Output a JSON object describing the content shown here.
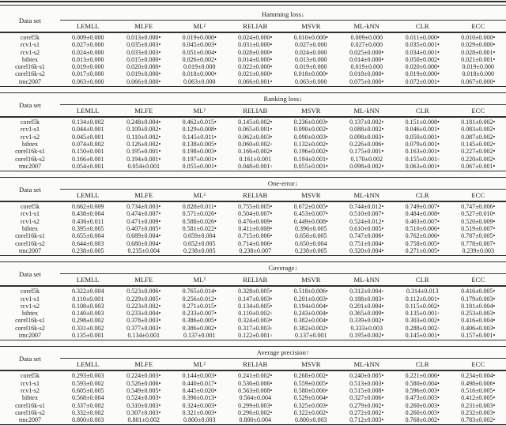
{
  "tables": [
    {
      "metric": "Hamming loss↓",
      "row_header": "Data set",
      "methods": [
        "LEMLL",
        "MLFE",
        "ML²",
        "RELIAB",
        "MSVR",
        "ML-kNN",
        "CLR",
        "ECC"
      ],
      "rows": [
        {
          "dataset": "corel5k",
          "values": [
            "0.009±0.000",
            "0.013±0.000•",
            "0.019±0.000•",
            "0.024±0.000•",
            "0.010±0.000•",
            "0.009±0.000",
            "0.011±0.000•",
            "0.010±0.000•"
          ]
        },
        {
          "dataset": "rcv1-s1",
          "values": [
            "0.027±0.000",
            "0.035±0.003•",
            "0.045±0.003•",
            "0.031±0.000•",
            "0.027±0.000",
            "0.027±0.000",
            "0.035±0.001•",
            "0.029±0.000•"
          ]
        },
        {
          "dataset": "rcv1-s2",
          "values": [
            "0.024±0.000",
            "0.033±0.003•",
            "0.051±0.004•",
            "0.028±0.000•",
            "0.024±0.000",
            "0.025±0.000•",
            "0.034±0.001•",
            "0.028±0.001•"
          ]
        },
        {
          "dataset": "bibtex",
          "values": [
            "0.013±0.000",
            "0.015±0.000•",
            "0.026±0.002•",
            "0.014±0.000•",
            "0.013±0.000",
            "0.014±0.000•",
            "0.050±0.002•",
            "0.021±0.001•"
          ]
        },
        {
          "dataset": "corel16k-s1",
          "values": [
            "0.019±0.000",
            "0.020±0.000•",
            "0.019±0.000",
            "0.022±0.000•",
            "0.019±0.000",
            "0.019±0.000",
            "0.020±0.000•",
            "0.019±0.000"
          ]
        },
        {
          "dataset": "corel16k-s2",
          "values": [
            "0.017±0.000",
            "0.019±0.000•",
            "0.018±0.000•",
            "0.021±0.000•",
            "0.018±0.000•",
            "0.018±0.000•",
            "0.019±0.000•",
            "0.018±0.000"
          ]
        },
        {
          "dataset": "tmc2007",
          "values": [
            "0.063±0.000",
            "0.066±0.000•",
            "0.063±0.000",
            "0.066±0.001•",
            "0.063±0.000",
            "0.075±0.000•",
            "0.072±0.001•",
            "0.067±0.000•"
          ]
        }
      ]
    },
    {
      "metric": "Ranking loss↓",
      "row_header": "Data set",
      "methods": [
        "LEMLL",
        "MLFE",
        "ML²",
        "RELIAB",
        "MSVR",
        "ML-kNN",
        "CLR",
        "ECC"
      ],
      "rows": [
        {
          "dataset": "corel5k",
          "values": [
            "0.134±0.002",
            "0.248±0.004•",
            "0.462±0.015•",
            "0.145±0.002•",
            "0.236±0.003•",
            "0.137±0.002•",
            "0.151±0.008•",
            "0.181±0.002•"
          ]
        },
        {
          "dataset": "rcv1-s1",
          "values": [
            "0.044±0.001",
            "0.109±0.002•",
            "0.129±0.008•",
            "0.065±0.001•",
            "0.090±0.002•",
            "0.088±0.002•",
            "0.046±0.001•",
            "0.083±0.002•"
          ]
        },
        {
          "dataset": "rcv1-s2",
          "values": [
            "0.045±0.001",
            "0.110±0.002•",
            "0.145±0.011•",
            "0.062±0.003•",
            "0.090±0.003•",
            "0.098±0.003•",
            "0.050±0.001•",
            "0.087±0.002•"
          ]
        },
        {
          "dataset": "bibtex",
          "values": [
            "0.074±0.002",
            "0.126±0.002•",
            "0.138±0.005•",
            "0.060±0.002◦",
            "0.132±0.002•",
            "0.226±0.006•",
            "0.079±0.001•",
            "0.145±0.002•"
          ]
        },
        {
          "dataset": "corel16k-s1",
          "values": [
            "0.150±0.001",
            "0.195±0.001•",
            "0.198±0.003•",
            "0.166±0.002•",
            "0.196±0.002•",
            "0.175±0.001•",
            "0.163±0.001•",
            "0.227±0.002•"
          ]
        },
        {
          "dataset": "corel16k-s2",
          "values": [
            "0.166±0.001",
            "0.194±0.001•",
            "0.197±0.001•",
            "0.161±0.001",
            "0.194±0.001•",
            "0.170±0.002",
            "0.155±0.001◦",
            "0.220±0.002•"
          ]
        },
        {
          "dataset": "tmc2007",
          "values": [
            "0.054±0.001",
            "0.054±0.001",
            "0.055±0.001•",
            "0.048±0.001◦",
            "0.055±0.001•",
            "0.098±0.002•",
            "0.063±0.001•",
            "0.067±0.001•"
          ]
        }
      ]
    },
    {
      "metric": "One-error↓",
      "row_header": "Data set",
      "methods": [
        "LEMLL",
        "MLFE",
        "ML²",
        "RELIAB",
        "MSVR",
        "ML-kNN",
        "CLR",
        "ECC"
      ],
      "rows": [
        {
          "dataset": "corel5k",
          "values": [
            "0.662±0.009",
            "0.734±0.003•",
            "0.828±0.011•",
            "0.755±0.005•",
            "0.672±0.005•",
            "0.744±0.012•",
            "0.749±0.007•",
            "0.747±0.006•"
          ]
        },
        {
          "dataset": "rcv1-s1",
          "values": [
            "0.438±0.004",
            "0.474±0.007•",
            "0.571±0.026•",
            "0.504±0.007•",
            "0.453±0.007•",
            "0.510±0.007•",
            "0.484±0.008•",
            "0.527±0.010•"
          ]
        },
        {
          "dataset": "rcv1-s2",
          "values": [
            "0.436±0.011",
            "0.471±0.009•",
            "0.588±0.026•",
            "0.476±0.009•",
            "0.449±0.008•",
            "0.524±0.012•",
            "0.463±0.007•",
            "0.520±0.009•"
          ]
        },
        {
          "dataset": "bibtex",
          "values": [
            "0.395±0.005",
            "0.407±0.005•",
            "0.581±0.022•",
            "0.411±0.008•",
            "0.396±0.005",
            "0.610±0.005•",
            "0.510±0.006•",
            "0.519±0.007•"
          ]
        },
        {
          "dataset": "corel16k-s1",
          "values": [
            "0.655±0.004",
            "0.689±0.004•",
            "0.659±0.004",
            "0.715±0.006•",
            "0.656±0.005",
            "0.747±0.006•",
            "0.762±0.006•",
            "0.787±0.005•"
          ]
        },
        {
          "dataset": "corel16k-s2",
          "values": [
            "0.644±0.003",
            "0.680±0.004•",
            "0.652±0.005",
            "0.714±0.006•",
            "0.650±0.004",
            "0.751±0.004•",
            "0.758±0.005•",
            "0.778±0.007•"
          ]
        },
        {
          "dataset": "tmc2007",
          "values": [
            "0.238±0.005",
            "0.235±0.004",
            "0.238±0.005",
            "0.238±0.007",
            "0.238±0.005",
            "0.320±0.004•",
            "0.271±0.005•",
            "0.239±0.003"
          ]
        }
      ]
    },
    {
      "metric": "Coverage↓",
      "row_header": "Data set",
      "methods": [
        "LEMLL",
        "MLFE",
        "ML²",
        "RELIAB",
        "MSVR",
        "ML-kNN",
        "CLR",
        "ECC"
      ],
      "rows": [
        {
          "dataset": "corel5k",
          "values": [
            "0.322±0.004",
            "0.523±0.006•",
            "0.765±0.014•",
            "0.328±0.005•",
            "0.518±0.006•",
            "0.312±0.004◦",
            "0.314±0.013",
            "0.416±0.005•"
          ]
        },
        {
          "dataset": "rcv1-s1",
          "values": [
            "0.110±0.001",
            "0.229±0.005•",
            "0.256±0.012•",
            "0.147±0.003•",
            "0.201±0.003•",
            "0.188±0.003•",
            "0.112±0.001•",
            "0.179±0.003•"
          ]
        },
        {
          "dataset": "rcv1-s2",
          "values": [
            "0.108±0.003",
            "0.223±0.002•",
            "0.271±0.015•",
            "0.134±0.005•",
            "0.194±0.004•",
            "0.201±0.004•",
            "0.115±0.002•",
            "0.181±0.004•"
          ]
        },
        {
          "dataset": "bibtex",
          "values": [
            "0.140±0.003",
            "0.233±0.004•",
            "0.233±0.007•",
            "0.110±0.002◦",
            "0.243±0.004•",
            "0.365±0.009•",
            "0.135±0.001◦",
            "0.253±0.003•"
          ]
        },
        {
          "dataset": "corel16k-s1",
          "values": [
            "0.298±0.002",
            "0.378±0.003•",
            "0.386±0.005•",
            "0.324±0.003•",
            "0.382±0.004•",
            "0.339±0.002•",
            "0.303±0.002•",
            "0.416±0.004•"
          ]
        },
        {
          "dataset": "corel16k-s2",
          "values": [
            "0.331±0.002",
            "0.377±0.003•",
            "0.386±0.002•",
            "0.317±0.003◦",
            "0.382±0.002•",
            "0.333±0.003",
            "0.288±0.002◦",
            "0.406±0.003•"
          ]
        },
        {
          "dataset": "tmc2007",
          "values": [
            "0.135±0.001",
            "0.134±0.001",
            "0.137±0.001",
            "0.122±0.001◦",
            "0.137±0.001",
            "0.195±0.002•",
            "0.145±0.001•",
            "0.157±0.001•"
          ]
        }
      ]
    },
    {
      "metric": "Average precision↑",
      "row_header": "Data set",
      "methods": [
        "LEMLL",
        "MLFE",
        "ML²",
        "RELIAB",
        "MSVR",
        "ML-kNN",
        "CLR",
        "ECC"
      ],
      "rows": [
        {
          "dataset": "corel5k",
          "values": [
            "0.293±0.003",
            "0.224±0.003•",
            "0.144±0.003•",
            "0.241±0.002•",
            "0.268±0.002•",
            "0.240±0.005•",
            "0.221±0.006•",
            "0.234±0.004•"
          ]
        },
        {
          "dataset": "rcv1-s1",
          "values": [
            "0.593±0.002",
            "0.526±0.006•",
            "0.440±0.017•",
            "0.536±0.006•",
            "0.559±0.005•",
            "0.513±0.003•",
            "0.580±0.004•",
            "0.498±0.006•"
          ]
        },
        {
          "dataset": "rcv1-s2",
          "values": [
            "0.605±0.005",
            "0.549±0.005•",
            "0.445±0.020•",
            "0.563±0.008•",
            "0.580±0.006•",
            "0.515±0.008•",
            "0.596±0.003•",
            "0.516±0.005•"
          ]
        },
        {
          "dataset": "bibtex",
          "values": [
            "0.568±0.004",
            "0.524±0.003•",
            "0.396±0.013•",
            "0.564±0.004",
            "0.529±0.004•",
            "0.327±0.006•",
            "0.473±0.003•",
            "0.412±0.005•"
          ]
        },
        {
          "dataset": "corel16k-s1",
          "values": [
            "0.337±0.002",
            "0.310±0.003•",
            "0.324±0.003•",
            "0.299±0.003•",
            "0.325±0.003•",
            "0.279±0.002•",
            "0.260±0.003•",
            "0.231±0.003•"
          ]
        },
        {
          "dataset": "corel16k-s2",
          "values": [
            "0.332±0.002",
            "0.307±0.003•",
            "0.321±0.003•",
            "0.296±0.002•",
            "0.322±0.002•",
            "0.272±0.002•",
            "0.260±0.003•",
            "0.232±0.003•"
          ]
        },
        {
          "dataset": "tmc2007",
          "values": [
            "0.800±0.003",
            "0.801±0.002",
            "0.800±0.003",
            "0.800±0.004",
            "0.800±0.003",
            "0.712±0.003•",
            "0.768±0.002•",
            "0.783±0.002•"
          ]
        }
      ]
    }
  ],
  "legend": {
    "better_marker": "◦",
    "worse_marker": "•"
  }
}
